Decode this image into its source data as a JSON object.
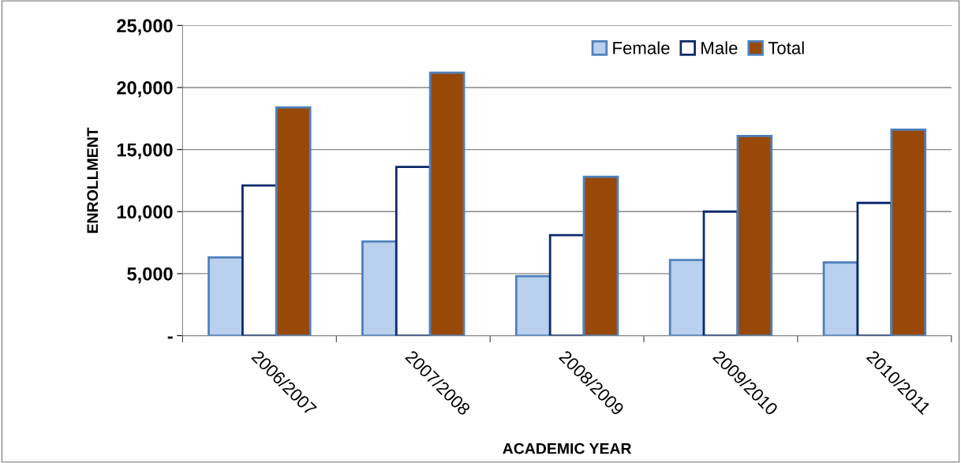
{
  "chart_data": {
    "type": "bar",
    "xlabel": "ACADEMIC YEAR",
    "ylabel": "ENROLLMENT",
    "categories": [
      "2006/2007",
      "2007/2008",
      "2008/2009",
      "2009/2010",
      "2010/2011"
    ],
    "series": [
      {
        "name": "Female",
        "color": "#b9d0ee",
        "values": [
          6300,
          7600,
          4800,
          6100,
          5900
        ]
      },
      {
        "name": "Male",
        "color": "#ffffff",
        "values": [
          12100,
          13600,
          8100,
          10000,
          10700
        ]
      },
      {
        "name": "Total",
        "color": "#984807",
        "values": [
          18400,
          21200,
          12800,
          16100,
          16600
        ]
      }
    ],
    "ylim": [
      0,
      25000
    ],
    "yticks": [
      {
        "value": 0,
        "label": "-"
      },
      {
        "value": 5000,
        "label": "5,000"
      },
      {
        "value": 10000,
        "label": "10,000"
      },
      {
        "value": 15000,
        "label": "15,000"
      },
      {
        "value": 20000,
        "label": "20,000"
      },
      {
        "value": 25000,
        "label": "25,000"
      }
    ],
    "grid": "y",
    "legend": "top right"
  }
}
